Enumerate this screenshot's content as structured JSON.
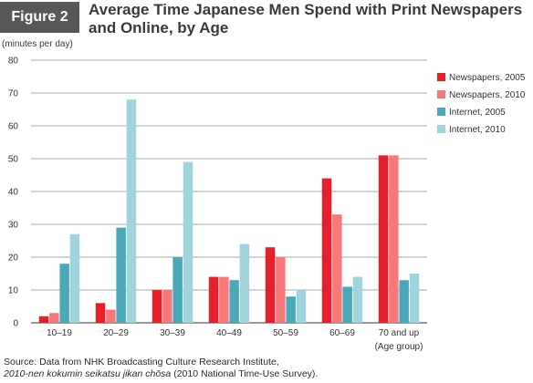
{
  "figure_label": "Figure 2",
  "source": {
    "line1": "Source: Data from NHK Broadcasting Culture Research Institute,",
    "line2_italic": "2010-nen kokumin seikatsu jikan chōsa",
    "line2_rest": " (2010 National Time-Use Survey)."
  },
  "chart_data": {
    "type": "bar",
    "title": "Average Time Japanese Men Spend with Print Newspapers and Online, by Age",
    "ylabel": "(minutes per day)",
    "xlabel": "(Age group)",
    "ylim": [
      0,
      80
    ],
    "yticks": [
      0,
      10,
      20,
      30,
      40,
      50,
      60,
      70,
      80
    ],
    "grid": true,
    "legend_position": "right",
    "categories": [
      "10–19",
      "20–29",
      "30–39",
      "40–49",
      "50–59",
      "60–69",
      "70 and up"
    ],
    "series": [
      {
        "name": "Newspapers, 2005",
        "color": "#e6202b",
        "values": [
          2,
          6,
          10,
          14,
          23,
          44,
          51
        ]
      },
      {
        "name": "Newspapers, 2010",
        "color": "#f5797a",
        "values": [
          3,
          4,
          10,
          14,
          20,
          33,
          51
        ]
      },
      {
        "name": "Internet, 2005",
        "color": "#4ba8b8",
        "values": [
          18,
          29,
          20,
          13,
          8,
          11,
          13
        ]
      },
      {
        "name": "Internet, 2010",
        "color": "#9fd3dd",
        "values": [
          27,
          68,
          49,
          24,
          10,
          14,
          15
        ]
      }
    ]
  }
}
